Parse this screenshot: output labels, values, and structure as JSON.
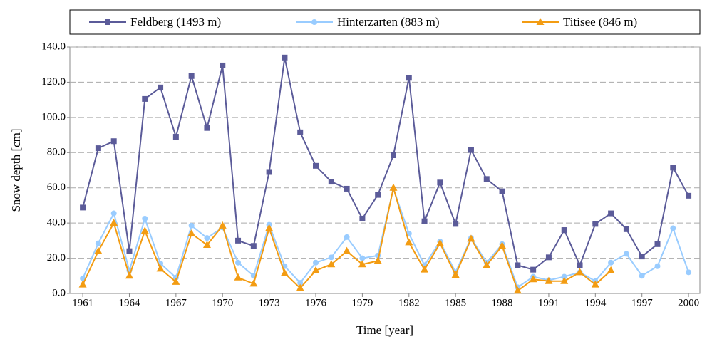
{
  "chart_data": {
    "type": "line",
    "xlabel": "Time [year]",
    "ylabel": "Snow depth [cm]",
    "x": [
      1961,
      1962,
      1963,
      1964,
      1965,
      1966,
      1967,
      1968,
      1969,
      1970,
      1971,
      1972,
      1973,
      1974,
      1975,
      1976,
      1977,
      1978,
      1979,
      1980,
      1981,
      1982,
      1983,
      1984,
      1985,
      1986,
      1987,
      1988,
      1989,
      1990,
      1991,
      1992,
      1993,
      1994,
      1995,
      1996,
      1997,
      1998,
      1999,
      2000
    ],
    "series": [
      {
        "name": "Feldberg (1493 m)",
        "color": "#5b5b99",
        "marker": "square",
        "values": [
          48.8,
          82.5,
          86.5,
          24,
          110.5,
          117,
          89,
          123.5,
          94,
          129.5,
          30,
          27,
          69,
          134,
          91.5,
          72.5,
          63.5,
          59.5,
          42.5,
          56,
          78.5,
          122.5,
          41,
          63,
          39.5,
          81.5,
          65,
          58,
          16,
          13.5,
          20.5,
          36,
          16,
          39.5,
          45.5,
          36.5,
          21,
          28,
          71.5,
          55.5
        ]
      },
      {
        "name": "Hinterzarten (883 m)",
        "color": "#99ccff",
        "marker": "circle",
        "values": [
          8.5,
          28.5,
          45.5,
          13,
          42.5,
          17,
          9,
          38.5,
          31.5,
          37.5,
          17.5,
          10,
          39,
          15.5,
          6,
          17.5,
          20.5,
          32,
          20,
          21.5,
          59.5,
          34,
          16,
          29.5,
          12,
          31.5,
          17.5,
          28,
          3.5,
          9.5,
          7.5,
          9.5,
          12,
          7,
          17.5,
          22.5,
          10,
          15.5,
          37,
          12
        ]
      },
      {
        "name": "Titisee (846 m)",
        "color": "#f39c12",
        "marker": "triangle",
        "values": [
          5,
          24,
          40,
          10,
          35.5,
          14,
          6.5,
          34,
          27.5,
          38.5,
          9,
          5.5,
          37,
          11.5,
          3,
          13,
          16.5,
          24,
          16.5,
          18.5,
          60,
          29,
          13.5,
          28.5,
          10.5,
          31,
          16,
          27,
          1.5,
          8,
          7,
          7,
          12,
          5,
          13,
          null,
          null,
          null,
          null,
          null
        ]
      }
    ],
    "xlim": [
      1960.17,
      2000.73
    ],
    "xticks": [
      1961,
      1964,
      1967,
      1970,
      1973,
      1976,
      1979,
      1982,
      1985,
      1988,
      1991,
      1994,
      1997,
      2000
    ],
    "ylim": [
      0,
      140
    ],
    "yticks": [
      {
        "value": 0,
        "label": "0.0"
      },
      {
        "value": 20,
        "label": "20.0"
      },
      {
        "value": 40,
        "label": "40.0"
      },
      {
        "value": 60,
        "label": "60.0"
      },
      {
        "value": 80,
        "label": "80.0"
      },
      {
        "value": 100,
        "label": "100.0"
      },
      {
        "value": 120,
        "label": "120.0"
      },
      {
        "value": 140,
        "label": "140.0"
      }
    ],
    "grid": true,
    "legend": "top"
  }
}
